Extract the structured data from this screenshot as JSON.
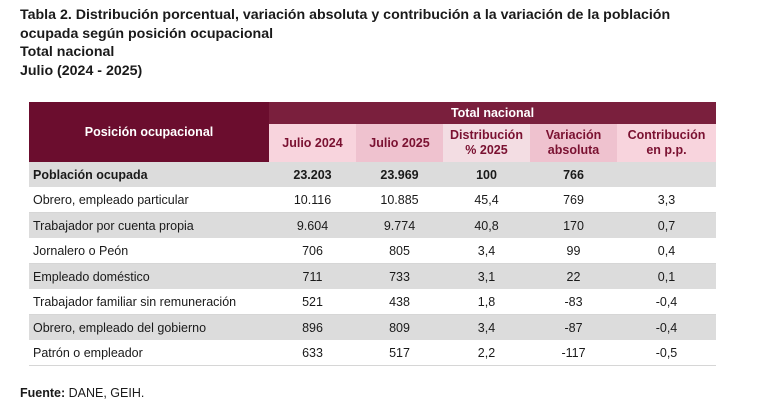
{
  "title": {
    "line1": "Tabla 2. Distribución porcentual, variación absoluta y contribución a la variación de la población",
    "line2": "ocupada según posición ocupacional",
    "line3": "Total nacional",
    "line4": "Julio (2024 - 2025)"
  },
  "table": {
    "group_header": "Total nacional",
    "col_position": "Posición ocupacional",
    "col_jul2024": "Julio 2024",
    "col_jul2025": "Julio 2025",
    "col_dist_1": "Distribución",
    "col_dist_2": "% 2025",
    "col_var_1": "Variación",
    "col_var_2": "absoluta",
    "col_contrib_1": "Contribución",
    "col_contrib_2": "en p.p.",
    "rows": [
      {
        "label": "Población ocupada",
        "jul2024": "23.203",
        "jul2025": "23.969",
        "dist": "100",
        "var": "766",
        "contrib": ""
      },
      {
        "label": "Obrero, empleado particular",
        "jul2024": "10.116",
        "jul2025": "10.885",
        "dist": "45,4",
        "var": "769",
        "contrib": "3,3"
      },
      {
        "label": "Trabajador por cuenta propia",
        "jul2024": "9.604",
        "jul2025": "9.774",
        "dist": "40,8",
        "var": "170",
        "contrib": "0,7"
      },
      {
        "label": "Jornalero o Peón",
        "jul2024": "706",
        "jul2025": "805",
        "dist": "3,4",
        "var": "99",
        "contrib": "0,4"
      },
      {
        "label": "Empleado doméstico",
        "jul2024": "711",
        "jul2025": "733",
        "dist": "3,1",
        "var": "22",
        "contrib": "0,1"
      },
      {
        "label": "Trabajador familiar sin remuneración",
        "jul2024": "521",
        "jul2025": "438",
        "dist": "1,8",
        "var": "-83",
        "contrib": "-0,4"
      },
      {
        "label": "Obrero, empleado del gobierno",
        "jul2024": "896",
        "jul2025": "809",
        "dist": "3,4",
        "var": "-87",
        "contrib": "-0,4"
      },
      {
        "label": "Patrón o empleador",
        "jul2024": "633",
        "jul2025": "517",
        "dist": "2,2",
        "var": "-117",
        "contrib": "-0,5"
      }
    ]
  },
  "footer": {
    "label": "Fuente:",
    "text": " DANE, GEIH."
  }
}
